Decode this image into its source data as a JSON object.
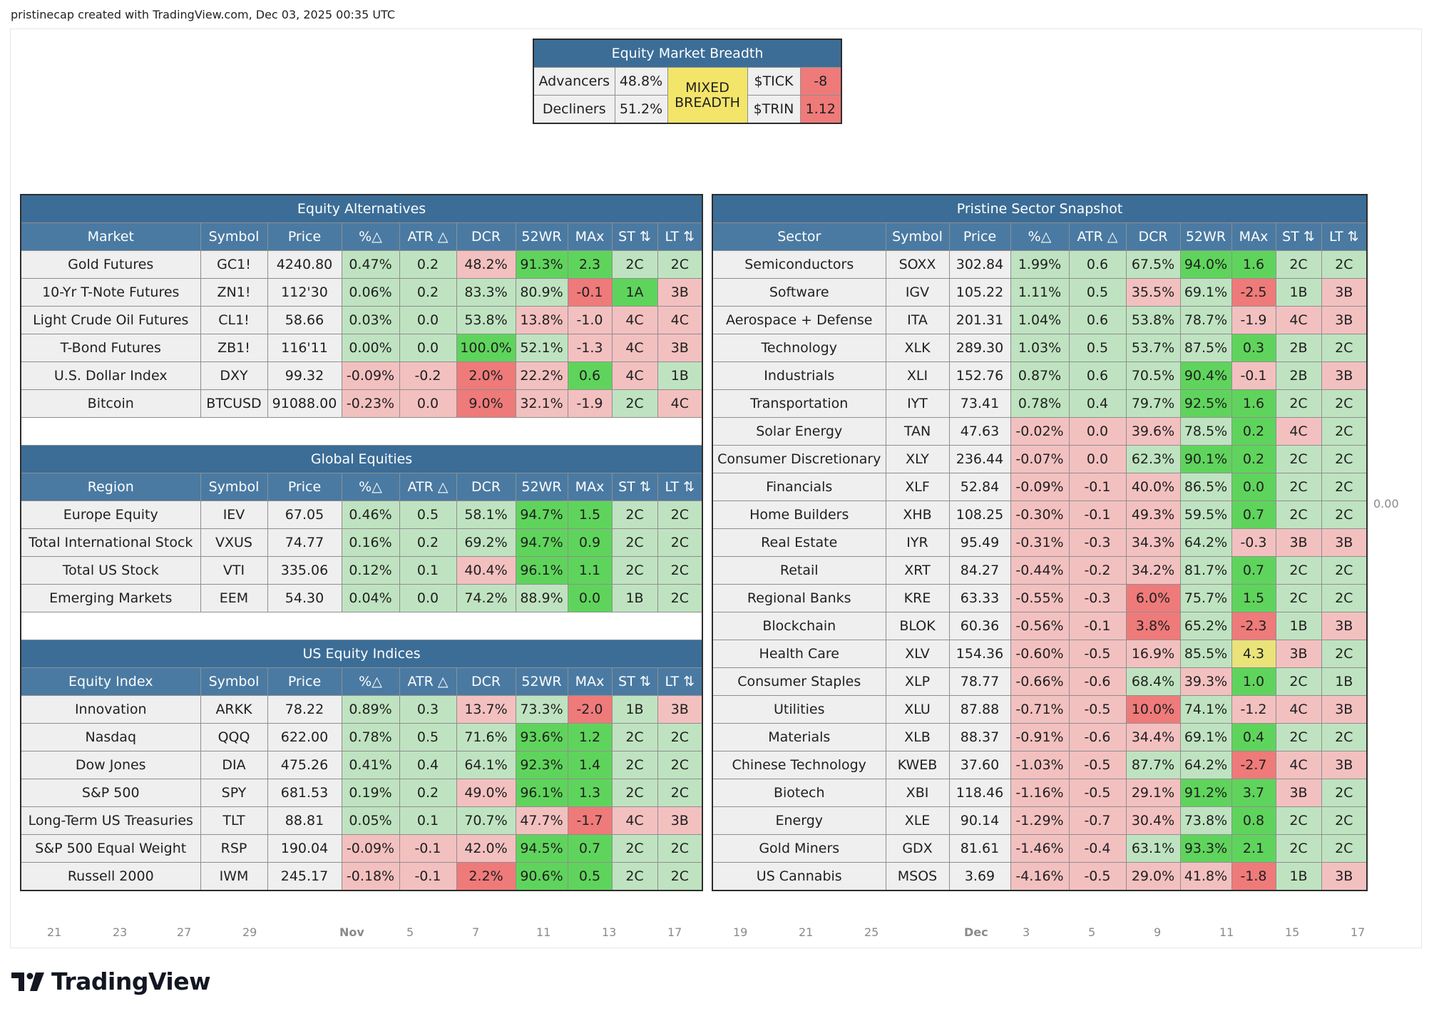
{
  "header": "pristinecap created with TradingView.com, Dec 03, 2025 00:35 UTC",
  "breadth": {
    "title": "Equity Market Breadth",
    "advancers_label": "Advancers",
    "advancers_value": "48.8%",
    "decliners_label": "Decliners",
    "decliners_value": "51.2%",
    "status": "MIXED BREADTH",
    "tick_label": "$TICK",
    "tick_value": "-8",
    "trin_label": "$TRIN",
    "trin_value": "1.12",
    "colors": {
      "status": "#f3e56a",
      "tick": "#ef7a7a",
      "trin": "#ef7a7a"
    }
  },
  "colors": {
    "header_bg": "#3b6d97",
    "subheader_bg": "#4a7aa2",
    "g1": "#bfe3c0",
    "g2": "#5fd45c",
    "r1": "#f3c0c0",
    "r2": "#ef7a7a",
    "y": "#eae37a"
  },
  "left_sections": [
    {
      "title": "Equity Alternatives",
      "headers": [
        "Market",
        "Symbol",
        "Price",
        "%△",
        "ATR △",
        "DCR",
        "52WR",
        "MAx",
        "ST ⇅",
        "LT ⇅"
      ],
      "rows": [
        {
          "cells": [
            "Gold Futures",
            "GC1!",
            "4240.80",
            "0.47%",
            "0.2",
            "48.2%",
            "91.3%",
            "2.3",
            "2C",
            "2C"
          ],
          "colors": [
            "n",
            "n",
            "n",
            "g1",
            "g1",
            "r1",
            "g2",
            "g2",
            "g1",
            "g1"
          ]
        },
        {
          "cells": [
            "10-Yr T-Note Futures",
            "ZN1!",
            "112'30",
            "0.06%",
            "0.2",
            "83.3%",
            "80.9%",
            "-0.1",
            "1A",
            "3B"
          ],
          "colors": [
            "n",
            "n",
            "n",
            "g1",
            "g1",
            "g1",
            "g1",
            "r2",
            "g2",
            "r1"
          ]
        },
        {
          "cells": [
            "Light Crude Oil Futures",
            "CL1!",
            "58.66",
            "0.03%",
            "0.0",
            "53.8%",
            "13.8%",
            "-1.0",
            "4C",
            "4C"
          ],
          "colors": [
            "n",
            "n",
            "n",
            "g1",
            "g1",
            "g1",
            "r1",
            "r1",
            "r1",
            "r1"
          ]
        },
        {
          "cells": [
            "T-Bond Futures",
            "ZB1!",
            "116'11",
            "0.00%",
            "0.0",
            "100.0%",
            "52.1%",
            "-1.3",
            "4C",
            "3B"
          ],
          "colors": [
            "n",
            "n",
            "n",
            "g1",
            "g1",
            "g2",
            "g1",
            "r1",
            "r1",
            "r1"
          ]
        },
        {
          "cells": [
            "U.S. Dollar Index",
            "DXY",
            "99.32",
            "-0.09%",
            "-0.2",
            "2.0%",
            "22.2%",
            "0.6",
            "4C",
            "1B"
          ],
          "colors": [
            "n",
            "n",
            "n",
            "r1",
            "r1",
            "r2",
            "r1",
            "g2",
            "r1",
            "g1"
          ]
        },
        {
          "cells": [
            "Bitcoin",
            "BTCUSD",
            "91088.00",
            "-0.23%",
            "0.0",
            "9.0%",
            "32.1%",
            "-1.9",
            "2C",
            "4C"
          ],
          "colors": [
            "n",
            "n",
            "n",
            "r1",
            "r1",
            "r2",
            "r1",
            "r1",
            "g1",
            "r1"
          ]
        }
      ]
    },
    {
      "title": "Global Equities",
      "headers": [
        "Region",
        "Symbol",
        "Price",
        "%△",
        "ATR △",
        "DCR",
        "52WR",
        "MAx",
        "ST ⇅",
        "LT ⇅"
      ],
      "rows": [
        {
          "cells": [
            "Europe Equity",
            "IEV",
            "67.05",
            "0.46%",
            "0.5",
            "58.1%",
            "94.7%",
            "1.5",
            "2C",
            "2C"
          ],
          "colors": [
            "n",
            "n",
            "n",
            "g1",
            "g1",
            "g1",
            "g2",
            "g2",
            "g1",
            "g1"
          ]
        },
        {
          "cells": [
            "Total International Stock",
            "VXUS",
            "74.77",
            "0.16%",
            "0.2",
            "69.2%",
            "94.7%",
            "0.9",
            "2C",
            "2C"
          ],
          "colors": [
            "n",
            "n",
            "n",
            "g1",
            "g1",
            "g1",
            "g2",
            "g2",
            "g1",
            "g1"
          ]
        },
        {
          "cells": [
            "Total US Stock",
            "VTI",
            "335.06",
            "0.12%",
            "0.1",
            "40.4%",
            "96.1%",
            "1.1",
            "2C",
            "2C"
          ],
          "colors": [
            "n",
            "n",
            "n",
            "g1",
            "g1",
            "r1",
            "g2",
            "g2",
            "g1",
            "g1"
          ]
        },
        {
          "cells": [
            "Emerging Markets",
            "EEM",
            "54.30",
            "0.04%",
            "0.0",
            "74.2%",
            "88.9%",
            "0.0",
            "1B",
            "2C"
          ],
          "colors": [
            "n",
            "n",
            "n",
            "g1",
            "g1",
            "g1",
            "g1",
            "g2",
            "g1",
            "g1"
          ]
        }
      ]
    },
    {
      "title": "US Equity Indices",
      "headers": [
        "Equity Index",
        "Symbol",
        "Price",
        "%△",
        "ATR △",
        "DCR",
        "52WR",
        "MAx",
        "ST ⇅",
        "LT ⇅"
      ],
      "rows": [
        {
          "cells": [
            "Innovation",
            "ARKK",
            "78.22",
            "0.89%",
            "0.3",
            "13.7%",
            "73.3%",
            "-2.0",
            "1B",
            "3B"
          ],
          "colors": [
            "n",
            "n",
            "n",
            "g1",
            "g1",
            "r1",
            "g1",
            "r2",
            "g1",
            "r1"
          ]
        },
        {
          "cells": [
            "Nasdaq",
            "QQQ",
            "622.00",
            "0.78%",
            "0.5",
            "71.6%",
            "93.6%",
            "1.2",
            "2C",
            "2C"
          ],
          "colors": [
            "n",
            "n",
            "n",
            "g1",
            "g1",
            "g1",
            "g2",
            "g2",
            "g1",
            "g1"
          ]
        },
        {
          "cells": [
            "Dow Jones",
            "DIA",
            "475.26",
            "0.41%",
            "0.4",
            "64.1%",
            "92.3%",
            "1.4",
            "2C",
            "2C"
          ],
          "colors": [
            "n",
            "n",
            "n",
            "g1",
            "g1",
            "g1",
            "g2",
            "g2",
            "g1",
            "g1"
          ]
        },
        {
          "cells": [
            "S&P 500",
            "SPY",
            "681.53",
            "0.19%",
            "0.2",
            "49.0%",
            "96.1%",
            "1.3",
            "2C",
            "2C"
          ],
          "colors": [
            "n",
            "n",
            "n",
            "g1",
            "g1",
            "r1",
            "g2",
            "g2",
            "g1",
            "g1"
          ]
        },
        {
          "cells": [
            "Long-Term US Treasuries",
            "TLT",
            "88.81",
            "0.05%",
            "0.1",
            "70.7%",
            "47.7%",
            "-1.7",
            "4C",
            "3B"
          ],
          "colors": [
            "n",
            "n",
            "n",
            "g1",
            "g1",
            "g1",
            "r1",
            "r2",
            "r1",
            "r1"
          ]
        },
        {
          "cells": [
            "S&P 500 Equal Weight",
            "RSP",
            "190.04",
            "-0.09%",
            "-0.1",
            "42.0%",
            "94.5%",
            "0.7",
            "2C",
            "2C"
          ],
          "colors": [
            "n",
            "n",
            "n",
            "r1",
            "r1",
            "r1",
            "g2",
            "g2",
            "g1",
            "g1"
          ]
        },
        {
          "cells": [
            "Russell 2000",
            "IWM",
            "245.17",
            "-0.18%",
            "-0.1",
            "2.2%",
            "90.6%",
            "0.5",
            "2C",
            "2C"
          ],
          "colors": [
            "n",
            "n",
            "n",
            "r1",
            "r1",
            "r2",
            "g2",
            "g2",
            "g1",
            "g1"
          ]
        }
      ]
    }
  ],
  "sector": {
    "title": "Pristine Sector Snapshot",
    "headers": [
      "Sector",
      "Symbol",
      "Price",
      "%△",
      "ATR △",
      "DCR",
      "52WR",
      "MAx",
      "ST ⇅",
      "LT ⇅"
    ],
    "rows": [
      {
        "cells": [
          "Semiconductors",
          "SOXX",
          "302.84",
          "1.99%",
          "0.6",
          "67.5%",
          "94.0%",
          "1.6",
          "2C",
          "2C"
        ],
        "colors": [
          "n",
          "n",
          "n",
          "g1",
          "g1",
          "g1",
          "g2",
          "g2",
          "g1",
          "g1"
        ]
      },
      {
        "cells": [
          "Software",
          "IGV",
          "105.22",
          "1.11%",
          "0.5",
          "35.5%",
          "69.1%",
          "-2.5",
          "1B",
          "3B"
        ],
        "colors": [
          "n",
          "n",
          "n",
          "g1",
          "g1",
          "r1",
          "g1",
          "r2",
          "g1",
          "r1"
        ]
      },
      {
        "cells": [
          "Aerospace + Defense",
          "ITA",
          "201.31",
          "1.04%",
          "0.6",
          "53.8%",
          "78.7%",
          "-1.9",
          "4C",
          "3B"
        ],
        "colors": [
          "n",
          "n",
          "n",
          "g1",
          "g1",
          "g1",
          "g1",
          "r1",
          "r1",
          "r1"
        ]
      },
      {
        "cells": [
          "Technology",
          "XLK",
          "289.30",
          "1.03%",
          "0.5",
          "53.7%",
          "87.5%",
          "0.3",
          "2B",
          "2C"
        ],
        "colors": [
          "n",
          "n",
          "n",
          "g1",
          "g1",
          "g1",
          "g1",
          "g2",
          "g1",
          "g1"
        ]
      },
      {
        "cells": [
          "Industrials",
          "XLI",
          "152.76",
          "0.87%",
          "0.6",
          "70.5%",
          "90.4%",
          "-0.1",
          "2B",
          "3B"
        ],
        "colors": [
          "n",
          "n",
          "n",
          "g1",
          "g1",
          "g1",
          "g2",
          "r1",
          "g1",
          "r1"
        ]
      },
      {
        "cells": [
          "Transportation",
          "IYT",
          "73.41",
          "0.78%",
          "0.4",
          "79.7%",
          "92.5%",
          "1.6",
          "2C",
          "2C"
        ],
        "colors": [
          "n",
          "n",
          "n",
          "g1",
          "g1",
          "g1",
          "g2",
          "g2",
          "g1",
          "g1"
        ]
      },
      {
        "cells": [
          "Solar Energy",
          "TAN",
          "47.63",
          "-0.02%",
          "0.0",
          "39.6%",
          "78.5%",
          "0.2",
          "4C",
          "2C"
        ],
        "colors": [
          "n",
          "n",
          "n",
          "r1",
          "r1",
          "r1",
          "g1",
          "g2",
          "r1",
          "g1"
        ]
      },
      {
        "cells": [
          "Consumer Discretionary",
          "XLY",
          "236.44",
          "-0.07%",
          "0.0",
          "62.3%",
          "90.1%",
          "0.2",
          "2C",
          "2C"
        ],
        "colors": [
          "n",
          "n",
          "n",
          "r1",
          "r1",
          "g1",
          "g2",
          "g2",
          "g1",
          "g1"
        ]
      },
      {
        "cells": [
          "Financials",
          "XLF",
          "52.84",
          "-0.09%",
          "-0.1",
          "40.0%",
          "86.5%",
          "0.0",
          "2C",
          "2C"
        ],
        "colors": [
          "n",
          "n",
          "n",
          "r1",
          "r1",
          "r1",
          "g1",
          "g2",
          "g1",
          "g1"
        ]
      },
      {
        "cells": [
          "Home Builders",
          "XHB",
          "108.25",
          "-0.30%",
          "-0.1",
          "49.3%",
          "59.5%",
          "0.7",
          "2C",
          "2C"
        ],
        "colors": [
          "n",
          "n",
          "n",
          "r1",
          "r1",
          "r1",
          "g1",
          "g2",
          "g1",
          "g1"
        ]
      },
      {
        "cells": [
          "Real Estate",
          "IYR",
          "95.49",
          "-0.31%",
          "-0.3",
          "34.3%",
          "64.2%",
          "-0.3",
          "3B",
          "3B"
        ],
        "colors": [
          "n",
          "n",
          "n",
          "r1",
          "r1",
          "r1",
          "g1",
          "r1",
          "r1",
          "r1"
        ]
      },
      {
        "cells": [
          "Retail",
          "XRT",
          "84.27",
          "-0.44%",
          "-0.2",
          "34.2%",
          "81.7%",
          "0.7",
          "2C",
          "2C"
        ],
        "colors": [
          "n",
          "n",
          "n",
          "r1",
          "r1",
          "r1",
          "g1",
          "g2",
          "g1",
          "g1"
        ]
      },
      {
        "cells": [
          "Regional Banks",
          "KRE",
          "63.33",
          "-0.55%",
          "-0.3",
          "6.0%",
          "75.7%",
          "1.5",
          "2C",
          "2C"
        ],
        "colors": [
          "n",
          "n",
          "n",
          "r1",
          "r1",
          "r2",
          "g1",
          "g2",
          "g1",
          "g1"
        ]
      },
      {
        "cells": [
          "Blockchain",
          "BLOK",
          "60.36",
          "-0.56%",
          "-0.1",
          "3.8%",
          "65.2%",
          "-2.3",
          "1B",
          "3B"
        ],
        "colors": [
          "n",
          "n",
          "n",
          "r1",
          "r1",
          "r2",
          "g1",
          "r2",
          "g1",
          "r1"
        ]
      },
      {
        "cells": [
          "Health Care",
          "XLV",
          "154.36",
          "-0.60%",
          "-0.5",
          "16.9%",
          "85.5%",
          "4.3",
          "3B",
          "2C"
        ],
        "colors": [
          "n",
          "n",
          "n",
          "r1",
          "r1",
          "r1",
          "g1",
          "y",
          "r1",
          "g1"
        ]
      },
      {
        "cells": [
          "Consumer Staples",
          "XLP",
          "78.77",
          "-0.66%",
          "-0.6",
          "68.4%",
          "39.3%",
          "1.0",
          "2C",
          "1B"
        ],
        "colors": [
          "n",
          "n",
          "n",
          "r1",
          "r1",
          "g1",
          "r1",
          "g2",
          "g1",
          "g1"
        ]
      },
      {
        "cells": [
          "Utilities",
          "XLU",
          "87.88",
          "-0.71%",
          "-0.5",
          "10.0%",
          "74.1%",
          "-1.2",
          "4C",
          "3B"
        ],
        "colors": [
          "n",
          "n",
          "n",
          "r1",
          "r1",
          "r2",
          "g1",
          "r1",
          "r1",
          "r1"
        ]
      },
      {
        "cells": [
          "Materials",
          "XLB",
          "88.37",
          "-0.91%",
          "-0.6",
          "34.4%",
          "69.1%",
          "0.4",
          "2C",
          "2C"
        ],
        "colors": [
          "n",
          "n",
          "n",
          "r1",
          "r1",
          "r1",
          "g1",
          "g2",
          "g1",
          "g1"
        ]
      },
      {
        "cells": [
          "Chinese Technology",
          "KWEB",
          "37.60",
          "-1.03%",
          "-0.5",
          "87.7%",
          "64.2%",
          "-2.7",
          "4C",
          "3B"
        ],
        "colors": [
          "n",
          "n",
          "n",
          "r1",
          "r1",
          "g1",
          "g1",
          "r2",
          "r1",
          "r1"
        ]
      },
      {
        "cells": [
          "Biotech",
          "XBI",
          "118.46",
          "-1.16%",
          "-0.5",
          "29.1%",
          "91.2%",
          "3.7",
          "3B",
          "2C"
        ],
        "colors": [
          "n",
          "n",
          "n",
          "r1",
          "r1",
          "r1",
          "g2",
          "g2",
          "r1",
          "g1"
        ]
      },
      {
        "cells": [
          "Energy",
          "XLE",
          "90.14",
          "-1.29%",
          "-0.7",
          "30.4%",
          "73.8%",
          "0.8",
          "2C",
          "2C"
        ],
        "colors": [
          "n",
          "n",
          "n",
          "r1",
          "r1",
          "r1",
          "g1",
          "g2",
          "g1",
          "g1"
        ]
      },
      {
        "cells": [
          "Gold Miners",
          "GDX",
          "81.61",
          "-1.46%",
          "-0.4",
          "63.1%",
          "93.3%",
          "2.1",
          "2C",
          "2C"
        ],
        "colors": [
          "n",
          "n",
          "n",
          "r1",
          "r1",
          "g1",
          "g2",
          "g2",
          "g1",
          "g1"
        ]
      },
      {
        "cells": [
          "US Cannabis",
          "MSOS",
          "3.69",
          "-4.16%",
          "-0.5",
          "29.0%",
          "41.8%",
          "-1.8",
          "1B",
          "3B"
        ],
        "colors": [
          "n",
          "n",
          "n",
          "r1",
          "r1",
          "r1",
          "r1",
          "r2",
          "g1",
          "r1"
        ]
      }
    ]
  },
  "price_scale_label": "0.00",
  "time_axis": [
    "21",
    "23",
    "27",
    "29",
    "Nov",
    "5",
    "7",
    "11",
    "13",
    "17",
    "19",
    "21",
    "25",
    "Dec",
    "3",
    "5",
    "9",
    "11",
    "15",
    "17"
  ],
  "brand": "TradingView"
}
